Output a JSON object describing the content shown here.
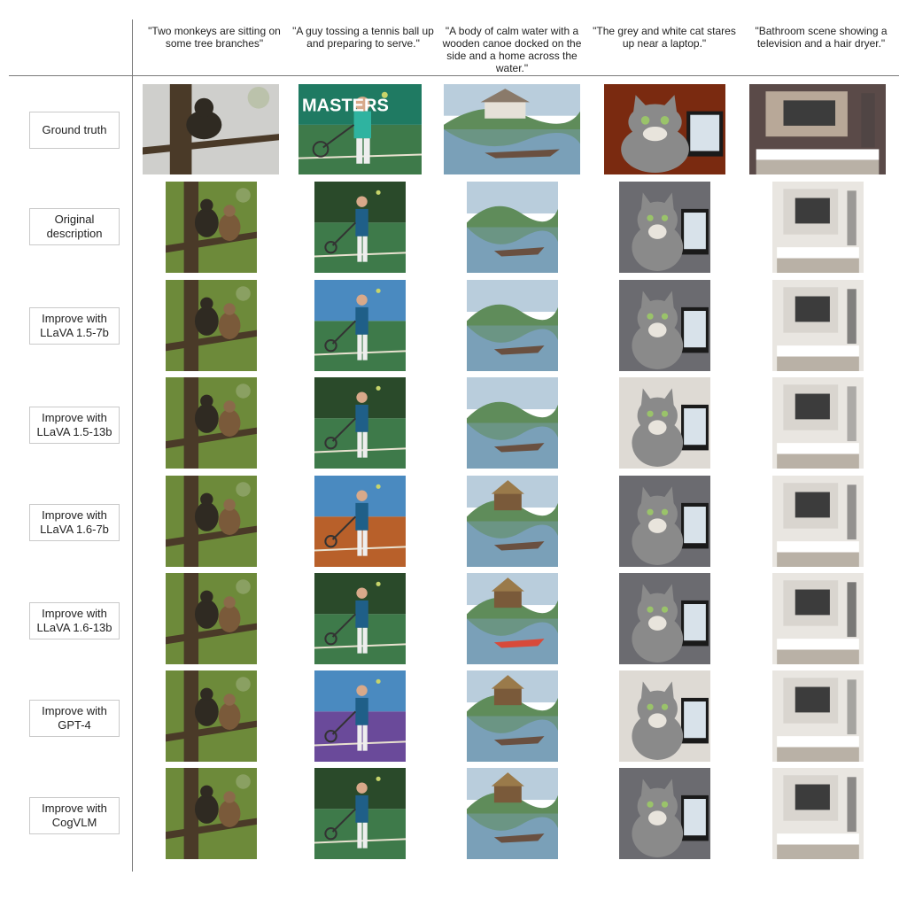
{
  "captions": [
    "\"Two monkeys are sitting on some tree branches\"",
    "\"A guy tossing a tennis ball up and preparing to serve.\"",
    "\"A body of calm water with a wooden canoe docked on the side and a home across the water.\"",
    "\"The grey and white cat stares up near a laptop.\"",
    "\"Bathroom scene showing a television and a hair dryer.\""
  ],
  "rows": [
    {
      "label": "Ground truth"
    },
    {
      "label": "Original description"
    },
    {
      "label": "Improve with LLaVA 1.5-7b"
    },
    {
      "label": "Improve with LLaVA 1.5-13b"
    },
    {
      "label": "Improve with LLaVA 1.6-7b"
    },
    {
      "label": "Improve with LLaVA 1.6-13b"
    },
    {
      "label": "Improve with GPT-4"
    },
    {
      "label": "Improve with CogVLM"
    }
  ],
  "image_text": {
    "masters_sign": "MASTERS"
  },
  "palettes": {
    "monkey": [
      "#6d8a3a",
      "#4a3a28",
      "#a8b58a",
      "#2f2a22"
    ],
    "tennis": [
      "#3e7a4a",
      "#1f5f88",
      "#e9e2d0",
      "#c7d46a"
    ],
    "lake": [
      "#5f8c5a",
      "#7aa0b8",
      "#6a5040",
      "#b9cddc"
    ],
    "cat": [
      "#8a8a8a",
      "#3a3a3a",
      "#e8e4dc",
      "#6b6b70"
    ],
    "bath": [
      "#e9e6e1",
      "#3c3c3c",
      "#b9b1a6",
      "#ffffff"
    ]
  }
}
